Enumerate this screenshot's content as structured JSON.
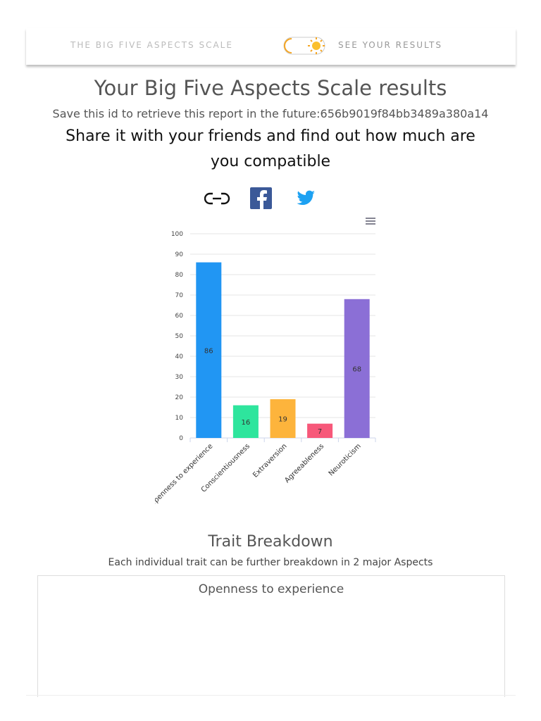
{
  "nav": {
    "brand": "THE BIG FIVE ASPECTS SCALE",
    "link": "SEE YOUR RESULTS"
  },
  "header": {
    "title": "Your Big Five Aspects Scale results",
    "id_note": "Save this id to retrieve this report in the future:656b9019f84bb3489a380a14",
    "share": "Share it with your friends and find out how much are you compatible"
  },
  "chart_data": {
    "type": "bar",
    "categories": [
      "Openness to experience",
      "Conscientiousness",
      "Extraversion",
      "Agreeableness",
      "Neuroticism"
    ],
    "values": [
      86,
      16,
      19,
      7,
      68
    ],
    "colors": [
      "#2196f3",
      "#2ee59d",
      "#fdb43c",
      "#f7587a",
      "#8b6fd6"
    ],
    "ylim": [
      0,
      100
    ],
    "yticks": [
      0,
      10,
      20,
      30,
      40,
      50,
      60,
      70,
      80,
      90,
      100
    ],
    "grid": true
  },
  "trait_breakdown": {
    "title": "Trait Breakdown",
    "subtitle": "Each individual trait can be further breakdown in 2 major Aspects",
    "cards": [
      {
        "title": "Openness to experience"
      }
    ]
  }
}
